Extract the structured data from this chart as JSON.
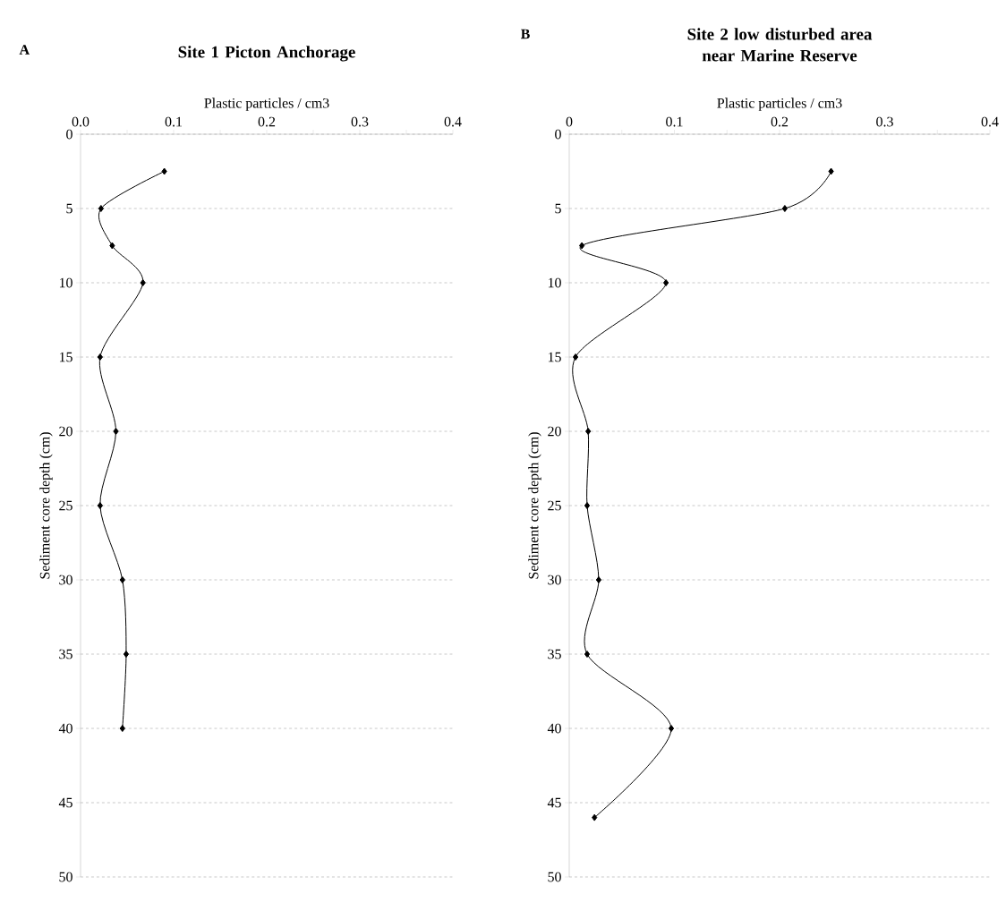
{
  "chart_data": [
    {
      "type": "line",
      "title": "Site 1 Picton Anchorage",
      "xlabel": "Plastic particles / cm3",
      "ylabel": "Sediment core depth (cm)",
      "annotations": [
        "A"
      ],
      "series": [
        {
          "color": "#000000",
          "x": [
            0.09,
            0.022,
            0.034,
            0.067,
            0.021,
            0.038,
            0.021,
            0.045,
            0.049,
            0.045
          ],
          "values": [
            2.5,
            5,
            7.5,
            10,
            15,
            20,
            25,
            30,
            35,
            40
          ]
        }
      ],
      "xlim": [
        0,
        0.4
      ],
      "xticks": [
        {
          "value": 0,
          "label": "0.0"
        },
        0.1,
        0.2,
        0.3,
        0.4
      ],
      "ylim": [
        50,
        0
      ],
      "yticks": [
        0,
        5,
        10,
        15,
        20,
        25,
        30,
        35,
        40,
        45,
        50
      ],
      "grid": "y",
      "marker": "diamond",
      "line_style": "solid"
    },
    {
      "type": "line",
      "title": "Site 2 low disturbed area near Marine Reserve",
      "xlabel": "Plastic particles / cm3",
      "ylabel": "Sediment core depth (cm)",
      "annotations": [
        "B"
      ],
      "series": [
        {
          "color": "#000000",
          "x": [
            0.249,
            0.205,
            0.012,
            0.092,
            0.006,
            0.018,
            0.017,
            0.028,
            0.017,
            0.097,
            0.024
          ],
          "values": [
            2.5,
            5,
            7.5,
            10,
            15,
            20,
            25,
            30,
            35,
            40,
            46
          ]
        }
      ],
      "xlim": [
        0,
        0.4
      ],
      "xticks": [
        0,
        0.1,
        0.2,
        0.3,
        0.4
      ],
      "ylim": [
        50,
        0
      ],
      "yticks": [
        0,
        5,
        10,
        15,
        20,
        25,
        30,
        35,
        40,
        45,
        50
      ],
      "grid": "y",
      "marker": "diamond",
      "line_style": "solid"
    }
  ]
}
